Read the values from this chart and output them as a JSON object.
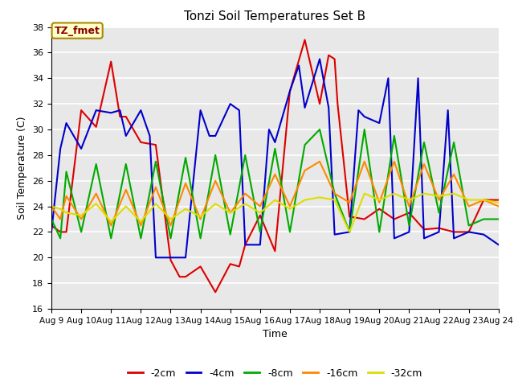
{
  "title": "Tonzi Soil Temperatures Set B",
  "xlabel": "Time",
  "ylabel": "Soil Temperature (C)",
  "xlim_days": [
    9,
    24
  ],
  "ylim": [
    16,
    38
  ],
  "yticks": [
    16,
    18,
    20,
    22,
    24,
    26,
    28,
    30,
    32,
    34,
    36,
    38
  ],
  "xtick_labels": [
    "Aug 9",
    "Aug 10",
    "Aug 11",
    "Aug 12",
    "Aug 13",
    "Aug 14",
    "Aug 15",
    "Aug 16",
    "Aug 17",
    "Aug 18",
    "Aug 19",
    "Aug 20",
    "Aug 21",
    "Aug 22",
    "Aug 23",
    "Aug 24"
  ],
  "annotation_label": "TZ_fmet",
  "annotation_box_color": "#ffffcc",
  "annotation_text_color": "#8b0000",
  "bg_color": "#e8e8e8",
  "series": {
    "-2cm": {
      "color": "#dd0000",
      "linewidth": 1.5,
      "data_x": [
        9.0,
        9.3,
        9.5,
        10.0,
        10.5,
        11.0,
        11.3,
        11.5,
        12.0,
        12.5,
        13.0,
        13.3,
        13.5,
        14.0,
        14.5,
        15.0,
        15.3,
        15.5,
        16.0,
        16.5,
        17.0,
        17.5,
        18.0,
        18.3,
        18.5,
        18.6,
        19.0,
        19.5,
        20.0,
        20.5,
        21.0,
        21.5,
        22.0,
        22.5,
        23.0,
        23.5,
        24.0
      ],
      "data_y": [
        22.5,
        22.0,
        22.0,
        31.5,
        30.2,
        35.3,
        31.0,
        31.0,
        29.0,
        28.8,
        19.8,
        18.5,
        18.5,
        19.3,
        17.3,
        19.5,
        19.3,
        21.0,
        23.3,
        20.5,
        33.0,
        37.0,
        32.0,
        35.8,
        35.5,
        32.0,
        23.2,
        23.0,
        23.8,
        23.0,
        23.5,
        22.2,
        22.3,
        22.0,
        22.0,
        24.5,
        24.5
      ]
    },
    "-4cm": {
      "color": "#0000cc",
      "linewidth": 1.5,
      "data_x": [
        9.0,
        9.3,
        9.5,
        10.0,
        10.5,
        11.0,
        11.3,
        11.5,
        12.0,
        12.3,
        12.5,
        13.0,
        13.5,
        14.0,
        14.3,
        14.5,
        15.0,
        15.3,
        15.5,
        16.0,
        16.3,
        16.5,
        17.0,
        17.3,
        17.5,
        18.0,
        18.3,
        18.5,
        19.0,
        19.3,
        19.5,
        20.0,
        20.3,
        20.5,
        21.0,
        21.3,
        21.5,
        22.0,
        22.3,
        22.5,
        23.0,
        23.5,
        24.0
      ],
      "data_y": [
        22.0,
        28.5,
        30.5,
        28.5,
        31.5,
        31.3,
        31.5,
        29.5,
        31.5,
        29.5,
        20.0,
        20.0,
        20.0,
        31.5,
        29.5,
        29.5,
        32.0,
        31.5,
        21.0,
        21.0,
        30.0,
        29.0,
        33.0,
        35.0,
        31.7,
        35.5,
        31.7,
        21.8,
        22.0,
        31.5,
        31.0,
        30.5,
        34.0,
        21.5,
        22.0,
        34.0,
        21.5,
        22.0,
        31.5,
        21.5,
        22.0,
        21.8,
        21.0
      ]
    },
    "-8cm": {
      "color": "#00aa00",
      "linewidth": 1.5,
      "data_x": [
        9.0,
        9.3,
        9.5,
        10.0,
        10.5,
        11.0,
        11.5,
        12.0,
        12.5,
        13.0,
        13.5,
        14.0,
        14.5,
        15.0,
        15.5,
        16.0,
        16.5,
        17.0,
        17.5,
        18.0,
        18.5,
        19.0,
        19.5,
        20.0,
        20.5,
        21.0,
        21.5,
        22.0,
        22.5,
        23.0,
        23.5,
        24.0
      ],
      "data_y": [
        23.0,
        21.5,
        26.7,
        22.0,
        27.3,
        21.5,
        27.3,
        21.5,
        27.5,
        21.5,
        27.8,
        21.5,
        28.0,
        21.8,
        28.0,
        22.0,
        28.5,
        22.0,
        28.8,
        30.0,
        25.0,
        22.0,
        30.0,
        22.0,
        29.5,
        22.5,
        29.0,
        23.5,
        29.0,
        22.5,
        23.0,
        23.0
      ]
    },
    "-16cm": {
      "color": "#ff8800",
      "linewidth": 1.5,
      "data_x": [
        9.0,
        9.3,
        9.5,
        10.0,
        10.5,
        11.0,
        11.5,
        12.0,
        12.5,
        13.0,
        13.5,
        14.0,
        14.5,
        15.0,
        15.5,
        16.0,
        16.5,
        17.0,
        17.5,
        18.0,
        18.5,
        19.0,
        19.5,
        20.0,
        20.5,
        21.0,
        21.5,
        22.0,
        22.5,
        23.0,
        23.5,
        24.0
      ],
      "data_y": [
        24.0,
        23.0,
        24.8,
        23.0,
        25.0,
        22.5,
        25.3,
        22.5,
        25.5,
        22.5,
        25.8,
        23.0,
        26.0,
        23.5,
        25.0,
        24.0,
        26.5,
        24.0,
        26.8,
        27.5,
        25.0,
        24.3,
        27.5,
        24.3,
        27.5,
        24.0,
        27.3,
        24.5,
        26.5,
        24.0,
        24.5,
        24.0
      ]
    },
    "-32cm": {
      "color": "#dddd00",
      "linewidth": 1.5,
      "data_x": [
        9.0,
        9.3,
        9.5,
        10.0,
        10.5,
        11.0,
        11.5,
        12.0,
        12.5,
        13.0,
        13.5,
        14.0,
        14.5,
        15.0,
        15.5,
        16.0,
        16.5,
        17.0,
        17.5,
        18.0,
        18.5,
        19.0,
        19.5,
        20.0,
        20.5,
        21.0,
        21.5,
        22.0,
        22.5,
        23.0,
        23.5,
        24.0
      ],
      "data_y": [
        24.0,
        23.8,
        23.5,
        23.3,
        24.2,
        22.8,
        24.0,
        22.8,
        24.2,
        23.0,
        23.8,
        23.2,
        24.2,
        23.5,
        24.2,
        23.5,
        24.5,
        23.8,
        24.5,
        24.7,
        24.5,
        22.0,
        25.0,
        24.5,
        25.0,
        24.5,
        25.0,
        24.8,
        25.0,
        24.5,
        24.5,
        24.3
      ]
    }
  }
}
